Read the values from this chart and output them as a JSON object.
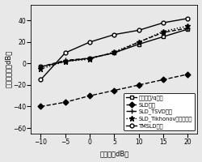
{
  "x": [
    -10,
    -5,
    0,
    5,
    10,
    15,
    20
  ],
  "series": [
    {
      "label": "迭代加权/q方法",
      "y": [
        -3,
        2,
        5,
        10,
        18,
        25,
        32
      ],
      "linestyle": "-",
      "marker": "s",
      "color": "#000000",
      "linewidth": 1.0,
      "markersize": 3.5,
      "markerfacecolor": "white",
      "markeredgecolor": "#000000"
    },
    {
      "label": "SLD方法",
      "y": [
        -40,
        -36,
        -30,
        -25,
        -20,
        -15,
        -10
      ],
      "linestyle": "--",
      "marker": "D",
      "color": "#000000",
      "linewidth": 1.0,
      "markersize": 3.5,
      "markerfacecolor": "#000000",
      "markeredgecolor": "#000000"
    },
    {
      "label": "SLD_TSVD方法",
      "y": [
        -3,
        3,
        5,
        10,
        20,
        29,
        33
      ],
      "linestyle": "--",
      "marker": "+",
      "color": "#000000",
      "linewidth": 1.0,
      "markersize": 5,
      "markerfacecolor": "#000000",
      "markeredgecolor": "#000000"
    },
    {
      "label": "SLD_Tikhonov正则化方法",
      "y": [
        -5,
        2,
        4,
        11,
        20,
        30,
        35
      ],
      "linestyle": ":",
      "marker": "*",
      "color": "#000000",
      "linewidth": 1.0,
      "markersize": 4.5,
      "markerfacecolor": "#000000",
      "markeredgecolor": "#000000"
    },
    {
      "label": "TMSLD方法",
      "y": [
        -15,
        10,
        20,
        27,
        31,
        38,
        42
      ],
      "linestyle": "-",
      "marker": "o",
      "color": "#000000",
      "linewidth": 1.0,
      "markersize": 3.5,
      "markerfacecolor": "white",
      "markeredgecolor": "#000000"
    }
  ],
  "xlabel": "信噪比（dB）",
  "ylabel": "重均信噪比（dB）",
  "xlim": [
    -12,
    22
  ],
  "ylim": [
    -65,
    55
  ],
  "xticks": [
    -10,
    -5,
    0,
    5,
    10,
    15,
    20
  ],
  "yticks": [
    -60,
    -40,
    -20,
    0,
    20,
    40
  ],
  "legend_fontsize": 4.8,
  "axis_fontsize": 6.0,
  "tick_fontsize": 5.5,
  "bg_color": "#e8e8e8"
}
